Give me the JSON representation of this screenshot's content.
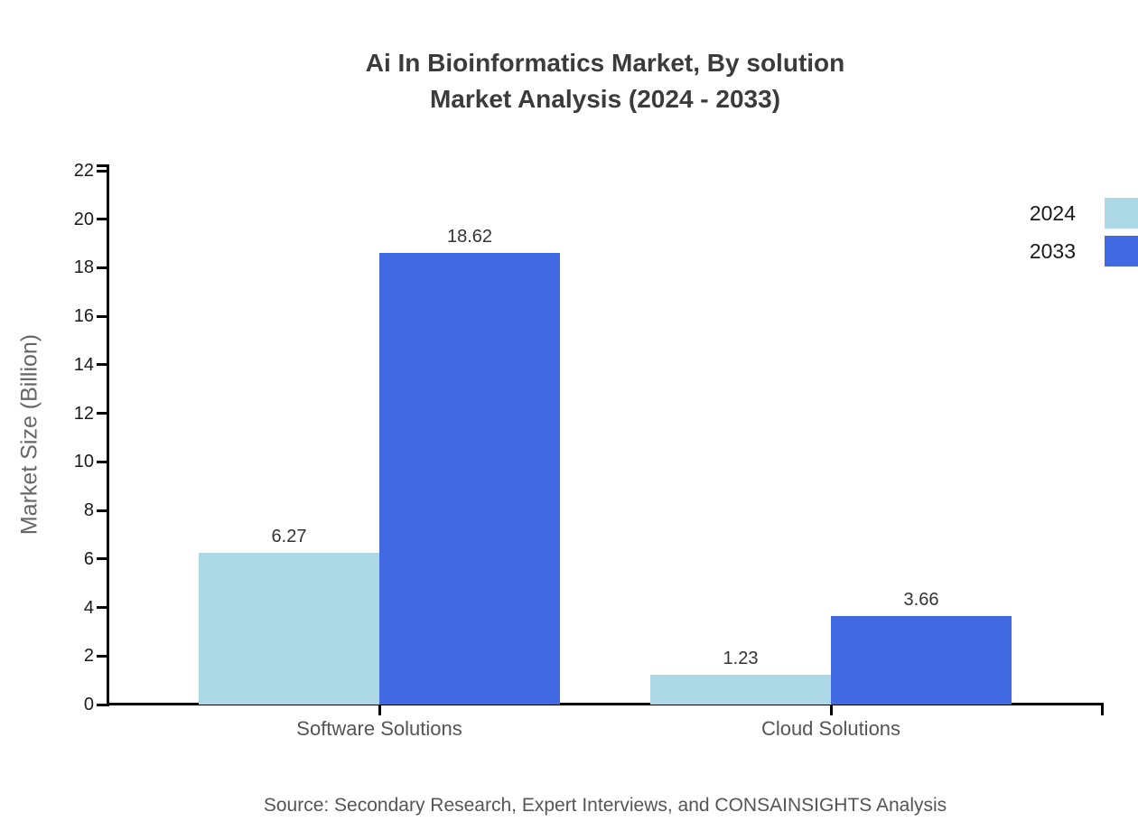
{
  "title": {
    "line1": "Ai In Bioinformatics Market, By solution",
    "line2": "Market Analysis (2024 - 2033)"
  },
  "chart_data": {
    "type": "bar",
    "categories": [
      "Software Solutions",
      "Cloud Solutions"
    ],
    "series": [
      {
        "name": "2024",
        "color": "#ADD8E6",
        "values": [
          6.27,
          1.23
        ]
      },
      {
        "name": "2033",
        "color": "#4169E1",
        "values": [
          18.62,
          3.66
        ]
      }
    ],
    "title": "Ai In Bioinformatics Market, By solution Market Analysis (2024 - 2033)",
    "xlabel": "",
    "ylabel": "Market Size (Billion)",
    "ylim": [
      0,
      22
    ],
    "ytick_step": 2,
    "grid": false,
    "legend_position": "top-right",
    "value_label_format": "2-decimals"
  },
  "source": {
    "text": "Source: Secondary Research, Expert Interviews, and CONSAINSIGHTS Analysis"
  }
}
